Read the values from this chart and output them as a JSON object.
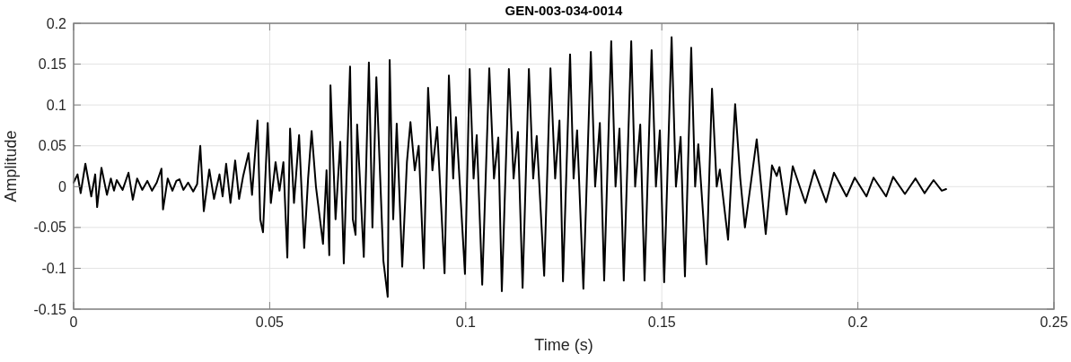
{
  "chart_data": {
    "type": "line",
    "title": "GEN-003-034-0014",
    "xlabel": "Time (s)",
    "ylabel": "Amplitude",
    "xlim": [
      0,
      0.25
    ],
    "xticks": [
      0,
      0.05,
      0.1,
      0.15,
      0.2,
      0.25
    ],
    "ylim": [
      -0.15,
      0.2
    ],
    "yticks": [
      -0.15,
      -0.1,
      -0.05,
      0,
      0.05,
      0.1,
      0.15,
      0.2
    ],
    "grid": true,
    "series": [
      {
        "color": "#000000",
        "x": [
          0,
          0.001,
          0.0018,
          0.003,
          0.0045,
          0.0055,
          0.006,
          0.0071,
          0.0085,
          0.0095,
          0.0103,
          0.011,
          0.0125,
          0.014,
          0.0151,
          0.0162,
          0.0175,
          0.0188,
          0.02,
          0.0212,
          0.0224,
          0.0228,
          0.024,
          0.0252,
          0.0262,
          0.027,
          0.028,
          0.0292,
          0.0305,
          0.0315,
          0.0323,
          0.0332,
          0.0346,
          0.0358,
          0.0372,
          0.038,
          0.0389,
          0.04,
          0.0412,
          0.0422,
          0.0432,
          0.0446,
          0.0455,
          0.0469,
          0.0476,
          0.0483,
          0.0495,
          0.0503,
          0.0515,
          0.0525,
          0.0535,
          0.0545,
          0.0552,
          0.0562,
          0.0575,
          0.0588,
          0.0598,
          0.0607,
          0.0618,
          0.0636,
          0.0645,
          0.0652,
          0.0655,
          0.0668,
          0.068,
          0.0689,
          0.0705,
          0.0712,
          0.0719,
          0.0723,
          0.074,
          0.0753,
          0.0762,
          0.0772,
          0.079,
          0.0801,
          0.0806,
          0.0815,
          0.0824,
          0.0838,
          0.085,
          0.0859,
          0.087,
          0.088,
          0.0893,
          0.0904,
          0.0915,
          0.0927,
          0.0946,
          0.0957,
          0.0968,
          0.0975,
          0.0998,
          0.101,
          0.102,
          0.1028,
          0.1042,
          0.106,
          0.1072,
          0.1083,
          0.1092,
          0.111,
          0.1122,
          0.1133,
          0.1145,
          0.1161,
          0.1172,
          0.1181,
          0.12,
          0.1216,
          0.1228,
          0.1239,
          0.1248,
          0.1266,
          0.1275,
          0.1284,
          0.13,
          0.1319,
          0.133,
          0.1342,
          0.1353,
          0.1371,
          0.1382,
          0.1392,
          0.1403,
          0.1422,
          0.1432,
          0.1445,
          0.1456,
          0.1474,
          0.1485,
          0.1495,
          0.1506,
          0.1525,
          0.1536,
          0.1548,
          0.1559,
          0.1575,
          0.1585,
          0.1593,
          0.1614,
          0.1628,
          0.164,
          0.1648,
          0.1669,
          0.1687,
          0.17,
          0.1712,
          0.1742,
          0.1765,
          0.1781,
          0.1793,
          0.18,
          0.1818,
          0.1834,
          0.1866,
          0.1889,
          0.1919,
          0.1939,
          0.1971,
          0.1992,
          0.2022,
          0.204,
          0.2072,
          0.209,
          0.212,
          0.2147,
          0.217,
          0.2193,
          0.2214,
          0.2225
        ],
        "values": [
          0.005,
          0.015,
          -0.008,
          0.028,
          -0.012,
          0.015,
          -0.025,
          0.023,
          -0.01,
          0.01,
          -0.005,
          0.008,
          -0.004,
          0.017,
          -0.016,
          0.01,
          -0.004,
          0.007,
          -0.005,
          0.005,
          0.022,
          -0.028,
          0.01,
          -0.005,
          0.007,
          0.009,
          -0.004,
          0.005,
          -0.006,
          0.003,
          0.05,
          -0.03,
          0.021,
          -0.015,
          0.015,
          -0.012,
          0.028,
          -0.02,
          0.032,
          -0.015,
          0.012,
          0.041,
          -0.01,
          0.081,
          -0.04,
          -0.056,
          0.078,
          -0.02,
          0.03,
          -0.005,
          0.03,
          -0.087,
          0.071,
          -0.02,
          0.063,
          -0.075,
          0.01,
          0.068,
          0,
          -0.07,
          0.02,
          -0.084,
          0.124,
          -0.04,
          0.055,
          -0.094,
          0.147,
          -0.04,
          -0.059,
          0.076,
          -0.086,
          0.152,
          -0.05,
          0.134,
          -0.091,
          -0.135,
          0.155,
          -0.04,
          0.077,
          -0.098,
          0.03,
          0.079,
          0.02,
          0.05,
          -0.1,
          0.121,
          0.02,
          0.073,
          -0.106,
          0.136,
          0.01,
          0.085,
          -0.107,
          0.144,
          0.01,
          0.063,
          -0.12,
          0.145,
          0.01,
          0.06,
          -0.128,
          0.144,
          0.01,
          0.067,
          -0.124,
          0.144,
          0.01,
          0.062,
          -0.109,
          0.145,
          0.01,
          0.081,
          -0.116,
          0.162,
          0.01,
          0.069,
          -0.125,
          0.165,
          0,
          0.078,
          -0.115,
          0.178,
          0,
          0.071,
          -0.115,
          0.178,
          0,
          0.076,
          -0.115,
          0.167,
          0,
          0.069,
          -0.117,
          0.183,
          0,
          0.061,
          -0.11,
          0.17,
          0,
          0.052,
          -0.095,
          0.12,
          0,
          0.021,
          -0.065,
          0.101,
          0.01,
          -0.05,
          0.058,
          -0.058,
          0.026,
          0.013,
          0.024,
          -0.034,
          0.025,
          -0.02,
          0.02,
          -0.019,
          0.017,
          -0.012,
          0.011,
          -0.012,
          0.011,
          -0.012,
          0.012,
          -0.009,
          0.01,
          -0.008,
          0.008,
          -0.005,
          -0.003
        ]
      }
    ]
  }
}
